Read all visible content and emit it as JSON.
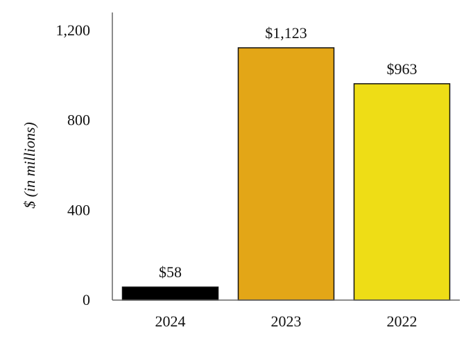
{
  "chart_data": {
    "type": "bar",
    "categories": [
      "2024",
      "2023",
      "2022"
    ],
    "values": [
      58,
      1123,
      963
    ],
    "data_labels": [
      "$58",
      "$1,123",
      "$963"
    ],
    "colors": [
      "#000000",
      "#E3A617",
      "#EEDD16"
    ],
    "title": "",
    "xlabel": "",
    "ylabel": "$ (in millions)",
    "ylim": [
      0,
      1200
    ],
    "yticks": [
      0,
      400,
      800,
      1200
    ],
    "ytick_labels": [
      "0",
      "400",
      "800",
      "1,200"
    ],
    "grid": false,
    "legend": "none"
  }
}
